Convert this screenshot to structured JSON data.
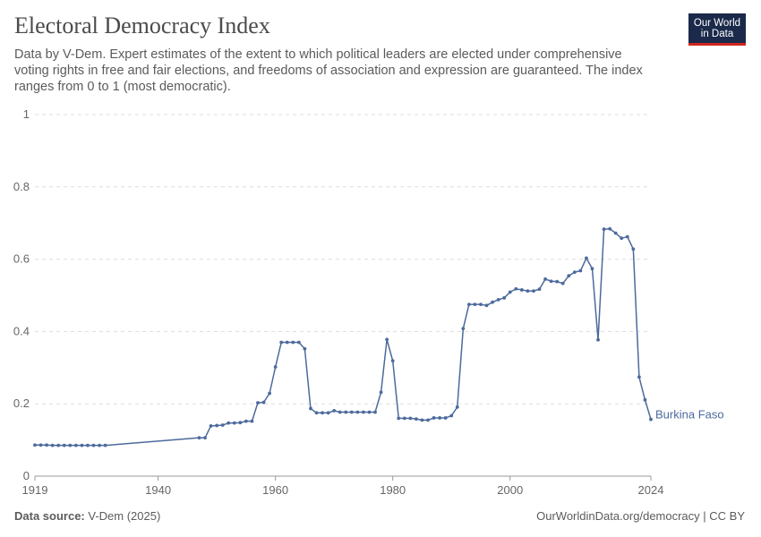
{
  "header": {
    "title": "Electoral Democracy Index",
    "subtitle": "Data by V-Dem. Expert estimates of the extent to which political leaders are elected under comprehensive voting rights in free and fair elections, and freedoms of association and expression are guaranteed. The index ranges from 0 to 1 (most democratic).",
    "logo_line1": "Our World",
    "logo_line2": "in Data"
  },
  "footer": {
    "source_label": "Data source:",
    "source_value": "V-Dem (2025)",
    "attribution": "OurWorldinData.org/democracy | CC BY"
  },
  "colors": {
    "series": "#4c6a9c",
    "grid": "#dddddd",
    "text": "#5b5b5b",
    "logo_bg": "#1b2a4a",
    "logo_accent": "#ce261e"
  },
  "chart_data": {
    "type": "line",
    "title": "Electoral Democracy Index",
    "xlabel": "",
    "ylabel": "",
    "xlim": [
      1919,
      2024
    ],
    "ylim": [
      0,
      1
    ],
    "x_ticks": [
      "1919",
      "1940",
      "1960",
      "1980",
      "2000",
      "2024"
    ],
    "y_ticks": [
      "0",
      "0.2",
      "0.4",
      "0.6",
      "0.8",
      "1"
    ],
    "grid": true,
    "series": [
      {
        "name": "Burkina Faso",
        "x": [
          1919,
          1920,
          1921,
          1922,
          1923,
          1924,
          1925,
          1926,
          1927,
          1928,
          1929,
          1930,
          1931,
          1947,
          1948,
          1949,
          1950,
          1951,
          1952,
          1953,
          1954,
          1955,
          1956,
          1957,
          1958,
          1959,
          1960,
          1961,
          1962,
          1963,
          1964,
          1965,
          1966,
          1967,
          1968,
          1969,
          1970,
          1971,
          1972,
          1973,
          1974,
          1975,
          1976,
          1977,
          1978,
          1979,
          1980,
          1981,
          1982,
          1983,
          1984,
          1985,
          1986,
          1987,
          1988,
          1989,
          1990,
          1991,
          1992,
          1993,
          1994,
          1995,
          1996,
          1997,
          1998,
          1999,
          2000,
          2001,
          2002,
          2003,
          2004,
          2005,
          2006,
          2007,
          2008,
          2009,
          2010,
          2011,
          2012,
          2013,
          2014,
          2015,
          2016,
          2017,
          2018,
          2019,
          2020,
          2021,
          2022,
          2023,
          2024
        ],
        "y": [
          0.086,
          0.086,
          0.086,
          0.085,
          0.085,
          0.085,
          0.085,
          0.085,
          0.085,
          0.085,
          0.085,
          0.085,
          0.085,
          0.106,
          0.106,
          0.139,
          0.14,
          0.141,
          0.147,
          0.147,
          0.148,
          0.152,
          0.152,
          0.203,
          0.204,
          0.229,
          0.302,
          0.37,
          0.37,
          0.37,
          0.37,
          0.352,
          0.187,
          0.175,
          0.175,
          0.175,
          0.181,
          0.177,
          0.177,
          0.177,
          0.177,
          0.177,
          0.177,
          0.177,
          0.232,
          0.378,
          0.319,
          0.16,
          0.16,
          0.16,
          0.158,
          0.155,
          0.155,
          0.161,
          0.161,
          0.161,
          0.167,
          0.191,
          0.408,
          0.475,
          0.475,
          0.475,
          0.472,
          0.481,
          0.488,
          0.493,
          0.509,
          0.518,
          0.515,
          0.512,
          0.512,
          0.517,
          0.545,
          0.539,
          0.538,
          0.533,
          0.554,
          0.564,
          0.568,
          0.603,
          0.574,
          0.377,
          0.683,
          0.684,
          0.672,
          0.658,
          0.662,
          0.628,
          0.274,
          0.211,
          0.157
        ]
      }
    ]
  }
}
